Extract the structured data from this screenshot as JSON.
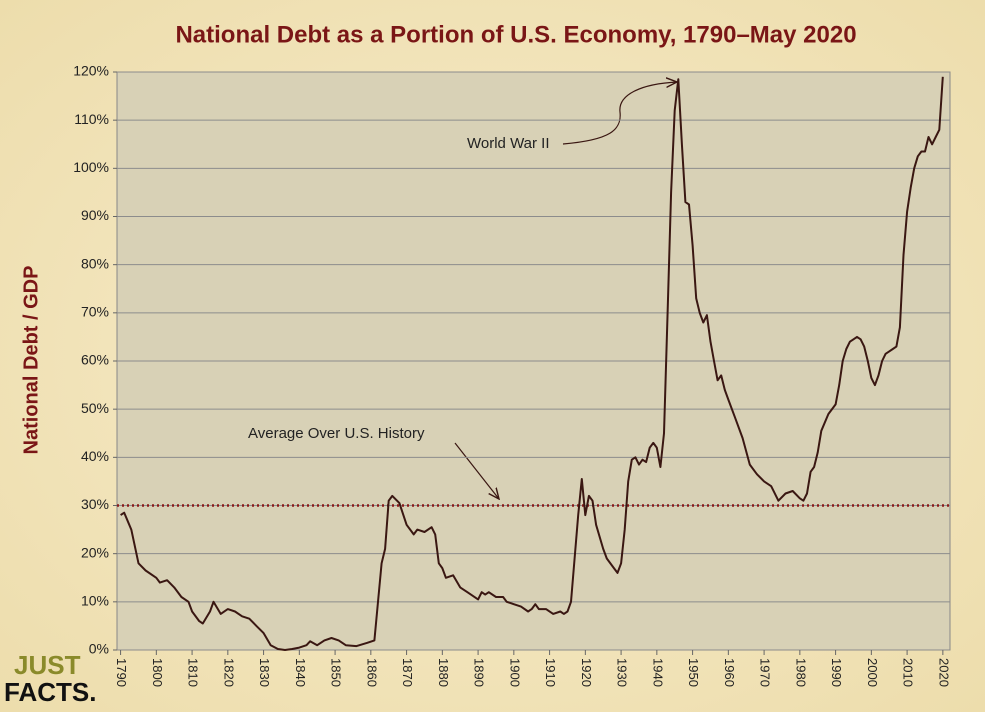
{
  "chart_data": {
    "type": "line",
    "title": "National Debt as a Portion of U.S. Economy, 1790–May 2020",
    "y_label": "National Debt / GDP",
    "x": [
      1790,
      1791,
      1793,
      1795,
      1797,
      1800,
      1801,
      1803,
      1805,
      1807,
      1809,
      1810,
      1812,
      1813,
      1815,
      1816,
      1818,
      1820,
      1822,
      1824,
      1826,
      1828,
      1830,
      1832,
      1834,
      1836,
      1838,
      1840,
      1842,
      1843,
      1845,
      1847,
      1849,
      1851,
      1853,
      1856,
      1859,
      1861,
      1862,
      1863,
      1864,
      1865,
      1866,
      1868,
      1870,
      1872,
      1873,
      1875,
      1877,
      1878,
      1879,
      1880,
      1881,
      1883,
      1885,
      1887,
      1890,
      1891,
      1892,
      1893,
      1895,
      1897,
      1898,
      1900,
      1902,
      1904,
      1905,
      1906,
      1907,
      1909,
      1911,
      1913,
      1914,
      1915,
      1916,
      1918,
      1919,
      1920,
      1921,
      1922,
      1923,
      1925,
      1926,
      1928,
      1929,
      1930,
      1931,
      1932,
      1933,
      1934,
      1935,
      1936,
      1937,
      1938,
      1939,
      1940,
      1941,
      1942,
      1943,
      1944,
      1945,
      1946,
      1947,
      1948,
      1949,
      1950,
      1951,
      1952,
      1953,
      1954,
      1955,
      1956,
      1957,
      1958,
      1959,
      1960,
      1962,
      1964,
      1966,
      1968,
      1970,
      1972,
      1974,
      1976,
      1978,
      1980,
      1981,
      1982,
      1983,
      1984,
      1985,
      1986,
      1988,
      1990,
      1991,
      1992,
      1993,
      1994,
      1995,
      1996,
      1997,
      1998,
      1999,
      2000,
      2001,
      2002,
      2003,
      2004,
      2005,
      2006,
      2007,
      2008,
      2009,
      2010,
      2011,
      2012,
      2013,
      2014,
      2015,
      2016,
      2017,
      2018,
      2019,
      2020
    ],
    "values": [
      28,
      28.5,
      25,
      18,
      16.5,
      15,
      14,
      14.5,
      13,
      11,
      10,
      8,
      6,
      5.5,
      8,
      10,
      7.5,
      8.5,
      8,
      7,
      6.5,
      5,
      3.5,
      1,
      0.2,
      0,
      0.2,
      0.5,
      1,
      1.8,
      1,
      2,
      2.5,
      2,
      1,
      0.8,
      1.5,
      2,
      10,
      18,
      21,
      31,
      32,
      30.5,
      26,
      24,
      25,
      24.5,
      25.5,
      24,
      18,
      17,
      15,
      15.5,
      13,
      12,
      10.5,
      12,
      11.5,
      12,
      11,
      11,
      10,
      9.5,
      9,
      8,
      8.5,
      9.5,
      8.5,
      8.5,
      7.5,
      8,
      7.5,
      8,
      10,
      28,
      35.5,
      28,
      32,
      31,
      26,
      21,
      19,
      17,
      16,
      18,
      25,
      35,
      39.5,
      40,
      38.5,
      39.5,
      39,
      42,
      43,
      42,
      38,
      45,
      70,
      95,
      112,
      118.5,
      105,
      93,
      92.5,
      84,
      73,
      70,
      68,
      69.5,
      64,
      60,
      56,
      57,
      54,
      52,
      48,
      44,
      38.5,
      36.5,
      35,
      34,
      31,
      32.5,
      33,
      31.5,
      31,
      32.5,
      37,
      38,
      41,
      45.5,
      49,
      51,
      55,
      60,
      62.5,
      64,
      64.5,
      65,
      64.5,
      63,
      60,
      56.5,
      55,
      57,
      60,
      61.5,
      62,
      62.5,
      63,
      67,
      82,
      91,
      96,
      100,
      102.5,
      103.5,
      103.5,
      106.5,
      105,
      106.5,
      108,
      119
    ],
    "color": "#3a1712",
    "xlim": [
      1789,
      2022
    ],
    "xticks": [
      1790,
      1800,
      1810,
      1820,
      1830,
      1840,
      1850,
      1860,
      1870,
      1880,
      1890,
      1900,
      1910,
      1920,
      1930,
      1940,
      1950,
      1960,
      1970,
      1980,
      1990,
      2000,
      2010,
      2020
    ],
    "ylim": [
      0,
      120
    ],
    "yticks": [
      {
        "value": 0,
        "label": "0%"
      },
      {
        "value": 10,
        "label": "10%"
      },
      {
        "value": 20,
        "label": "20%"
      },
      {
        "value": 30,
        "label": "30%"
      },
      {
        "value": 40,
        "label": "40%"
      },
      {
        "value": 50,
        "label": "50%"
      },
      {
        "value": 60,
        "label": "60%"
      },
      {
        "value": 70,
        "label": "70%"
      },
      {
        "value": 80,
        "label": "80%"
      },
      {
        "value": 90,
        "label": "90%"
      },
      {
        "value": 100,
        "label": "100%"
      },
      {
        "value": 110,
        "label": "110%"
      },
      {
        "value": 120,
        "label": "120%"
      }
    ],
    "grid": true,
    "reference_line": {
      "value": 30,
      "label": "Average Over U.S. History",
      "color": "#8b1a1a"
    },
    "annotation": "World War II"
  },
  "logo": {
    "line1": "JUST",
    "line2": "FACTS."
  }
}
